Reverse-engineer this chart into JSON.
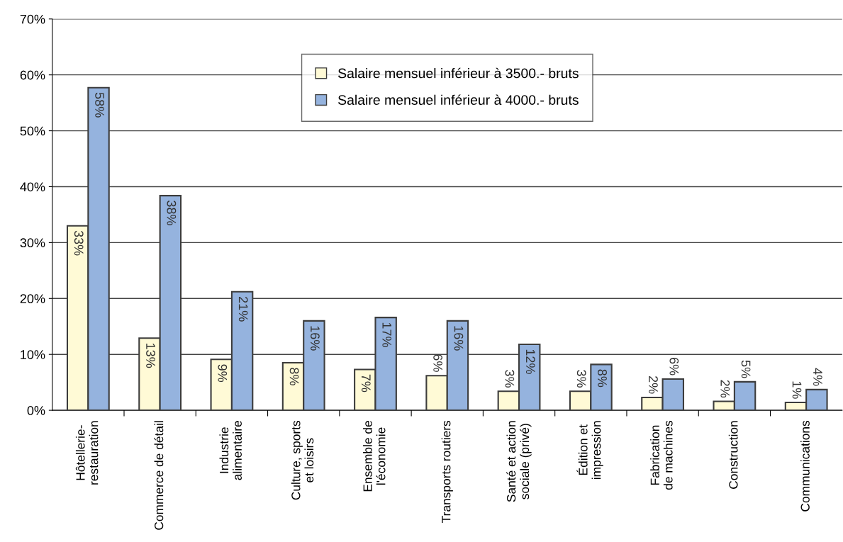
{
  "chart_data": {
    "type": "bar",
    "categories": [
      "Hôtellerie-restauration",
      "Commerce de détail",
      "Industrie alimentaire",
      "Culture, sports et loisirs",
      "Ensemble de l'économie",
      "Transports routiers",
      "Santé et action sociale (privé)",
      "Édition et impression",
      "Fabrication de machines",
      "Construction",
      "Communications"
    ],
    "series": [
      {
        "name": "Salaire mensuel inférieur à 3500.- bruts",
        "color": "#fffad6",
        "values": [
          33.0,
          12.9,
          9.1,
          8.5,
          7.3,
          6.2,
          3.4,
          3.4,
          2.3,
          1.6,
          1.4
        ],
        "value_labels": [
          "33%",
          "13%",
          "9%",
          "8%",
          "7%",
          "6%",
          "3%",
          "3%",
          "2%",
          "2%",
          "1%"
        ]
      },
      {
        "name": "Salaire mensuel inférieur à 4000.- bruts",
        "color": "#95b3de",
        "values": [
          57.7,
          38.4,
          21.2,
          16.0,
          16.6,
          16.0,
          11.8,
          8.2,
          5.6,
          5.1,
          3.7
        ],
        "value_labels": [
          "58%",
          "38%",
          "21%",
          "16%",
          "17%",
          "16%",
          "12%",
          "8%",
          "6%",
          "5%",
          "4%"
        ]
      }
    ],
    "ylim": [
      0,
      70
    ],
    "yticks": [
      {
        "value": 0,
        "label": "0%"
      },
      {
        "value": 10,
        "label": "10%"
      },
      {
        "value": 20,
        "label": "20%"
      },
      {
        "value": 30,
        "label": "30%"
      },
      {
        "value": 40,
        "label": "40%"
      },
      {
        "value": 50,
        "label": "50%"
      },
      {
        "value": 60,
        "label": "60%"
      },
      {
        "value": 70,
        "label": "70%"
      }
    ],
    "grid": "y",
    "legend": "top"
  }
}
